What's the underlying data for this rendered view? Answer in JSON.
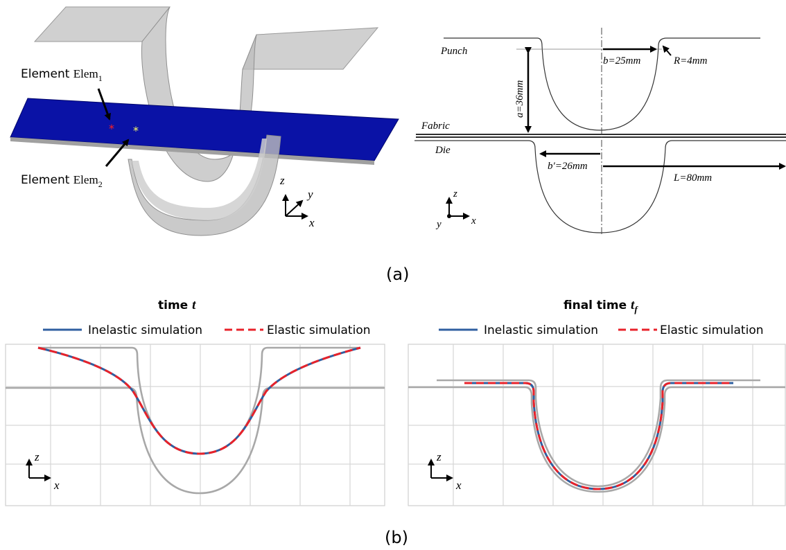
{
  "panel_a": {
    "left": {
      "elem1_label_prefix": "Element ",
      "elem1_name": "Elem",
      "elem1_sub": "1",
      "elem2_label_prefix": "Element ",
      "elem2_name": "Elem",
      "elem2_sub": "2",
      "axis_z": "z",
      "axis_y": "y",
      "axis_x": "x",
      "colors": {
        "fabric": "#0a12a6",
        "tool": "#b0b0b0",
        "elem1_marker": "#ff2020",
        "elem2_marker": "#ffff66"
      }
    },
    "right": {
      "punch": "Punch",
      "fabric": "Fabric",
      "die": "Die",
      "b": "b=25mm",
      "R": "R=4mm",
      "a": "a=36mm",
      "b_prime": "b′=26mm",
      "L": "L=80mm",
      "axis_z": "z",
      "axis_y": "y",
      "axis_x": "x"
    },
    "caption": "(a)"
  },
  "panel_b": {
    "left": {
      "title_prefix": "time ",
      "title_var": "t",
      "legend_inelastic": "Inelastic simulation",
      "legend_elastic": "Elastic simulation",
      "axis_z": "z",
      "axis_x": "x"
    },
    "right": {
      "title_prefix": "final time ",
      "title_var": "t",
      "title_sub": "f",
      "legend_inelastic": "Inelastic simulation",
      "legend_elastic": "Elastic simulation",
      "axis_z": "z",
      "axis_x": "x"
    },
    "colors": {
      "inelastic": "#2f5fa0",
      "elastic": "#e8222a",
      "tool": "#a8a8a8"
    },
    "caption": "(b)"
  }
}
